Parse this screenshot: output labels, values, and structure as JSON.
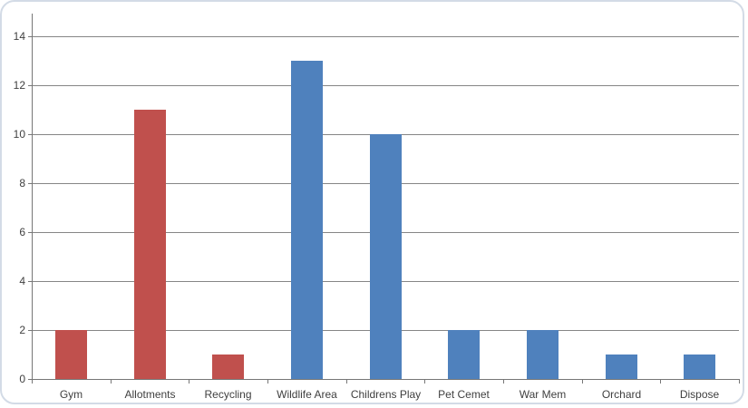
{
  "chart_data": {
    "type": "bar",
    "title": "",
    "xlabel": "",
    "ylabel": "",
    "categories": [
      "Gym",
      "Allotments",
      "Recycling",
      "Wildlife Area",
      "Childrens Play",
      "Pet Cemet",
      "War Mem",
      "Orchard",
      "Dispose"
    ],
    "values": [
      2,
      11,
      1,
      13,
      10,
      2,
      2,
      1,
      1
    ],
    "bar_colors": [
      "#C0504D",
      "#C0504D",
      "#C0504D",
      "#4F81BD",
      "#4F81BD",
      "#4F81BD",
      "#4F81BD",
      "#4F81BD",
      "#4F81BD"
    ],
    "series_colors": {
      "red": "#C0504D",
      "blue": "#4F81BD"
    },
    "ylim": [
      0,
      15
    ],
    "yticks": [
      0,
      2,
      4,
      6,
      8,
      10,
      12,
      14
    ],
    "grid": true,
    "legend": false,
    "gridline_color": "#868686",
    "axis_color": "#777777",
    "label_color": "#3f3f3f",
    "frame_border_color": "#d3dbe6",
    "background_color": "#ffffff"
  }
}
